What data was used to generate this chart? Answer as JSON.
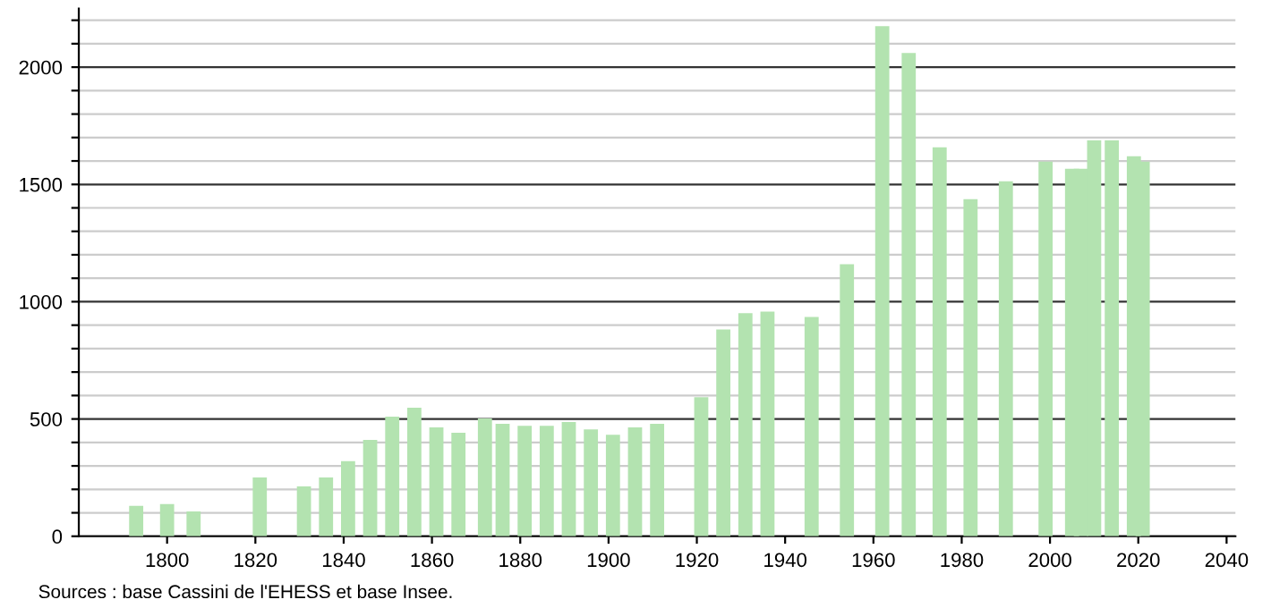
{
  "chart_data": {
    "type": "bar",
    "color": "#b3e3b0",
    "x": [
      1793,
      1800,
      1806,
      1821,
      1831,
      1836,
      1841,
      1846,
      1851,
      1856,
      1861,
      1866,
      1872,
      1876,
      1881,
      1886,
      1891,
      1896,
      1901,
      1906,
      1911,
      1921,
      1926,
      1931,
      1936,
      1946,
      1954,
      1962,
      1968,
      1975,
      1982,
      1990,
      1999,
      2005,
      2007,
      2010,
      2014,
      2019,
      2021
    ],
    "values": [
      130,
      137,
      106,
      251,
      213,
      251,
      320,
      411,
      510,
      548,
      464,
      441,
      502,
      479,
      471,
      471,
      487,
      456,
      433,
      464,
      479,
      593,
      882,
      951,
      958,
      935,
      1160,
      2175,
      2060,
      1658,
      1437,
      1513,
      1597,
      1567,
      1567,
      1688,
      1688,
      1620,
      1597
    ],
    "xlim": [
      1780,
      2042
    ],
    "xticks": [
      1800,
      1820,
      1840,
      1860,
      1880,
      1900,
      1920,
      1940,
      1960,
      1980,
      2000,
      2020,
      2040
    ],
    "ylim": [
      0,
      2250
    ],
    "yticks": [
      0,
      {
        "value": 100,
        "label": null
      },
      {
        "value": 200,
        "label": null
      },
      {
        "value": 300,
        "label": null
      },
      {
        "value": 400,
        "label": null
      },
      500,
      {
        "value": 600,
        "label": null
      },
      {
        "value": 700,
        "label": null
      },
      {
        "value": 800,
        "label": null
      },
      {
        "value": 900,
        "label": null
      },
      1000,
      {
        "value": 1100,
        "label": null
      },
      {
        "value": 1200,
        "label": null
      },
      {
        "value": 1300,
        "label": null
      },
      {
        "value": 1400,
        "label": null
      },
      1500,
      {
        "value": 1600,
        "label": null
      },
      {
        "value": 1700,
        "label": null
      },
      {
        "value": 1800,
        "label": null
      },
      {
        "value": 1900,
        "label": null
      },
      2000,
      {
        "value": 2100,
        "label": null
      },
      {
        "value": 2200,
        "label": null
      }
    ],
    "grid": "y",
    "annotations": [
      "Sources : base Cassini de l'EHESS et base Insee."
    ]
  }
}
